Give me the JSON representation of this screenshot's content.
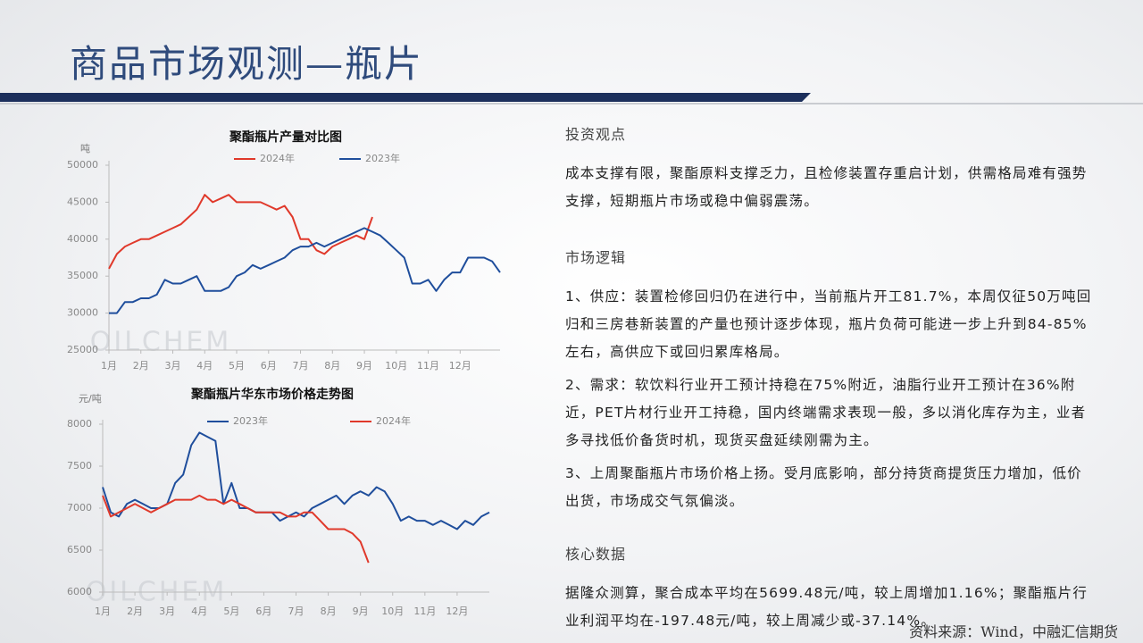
{
  "header": {
    "title": "商品市场观测—瓶片"
  },
  "chart_data": [
    {
      "type": "line",
      "title": "聚酯瓶片产量对比图",
      "y_label": "吨",
      "watermark": "OILCHEM",
      "x": [
        1,
        1.25,
        1.5,
        1.75,
        2,
        2.25,
        2.5,
        2.75,
        3,
        3.25,
        3.5,
        3.75,
        4,
        4.25,
        4.5,
        4.75,
        5,
        5.25,
        5.5,
        5.75,
        6,
        6.25,
        6.5,
        6.75,
        7,
        7.25,
        7.5,
        7.75,
        8,
        8.25,
        8.5,
        8.75,
        9,
        9.25,
        9.5,
        9.75,
        10,
        10.25,
        10.5,
        10.75,
        11,
        11.25,
        11.5,
        11.75,
        12,
        12.25,
        12.5,
        12.75,
        13,
        13.25
      ],
      "xlim": [
        1,
        13.25
      ],
      "xticks": [
        {
          "value": 1,
          "label": "1月"
        },
        {
          "value": 2,
          "label": "2月"
        },
        {
          "value": 3,
          "label": "3月"
        },
        {
          "value": 4,
          "label": "4月"
        },
        {
          "value": 5,
          "label": "5月"
        },
        {
          "value": 6,
          "label": "6月"
        },
        {
          "value": 7,
          "label": "7月"
        },
        {
          "value": 8,
          "label": "8月"
        },
        {
          "value": 9,
          "label": "9月"
        },
        {
          "value": 10,
          "label": "10月"
        },
        {
          "value": 11,
          "label": "11月"
        },
        {
          "value": 12,
          "label": "12月"
        }
      ],
      "ylim": [
        25000,
        50000
      ],
      "yticks": [
        25000,
        30000,
        35000,
        40000,
        45000,
        50000
      ],
      "series": [
        {
          "name": "2024年",
          "color": "#e0392b",
          "values": [
            36000,
            38000,
            39000,
            39500,
            40000,
            40000,
            40500,
            41000,
            41500,
            42000,
            43000,
            44000,
            46000,
            45000,
            45500,
            46000,
            45000,
            45000,
            45000,
            45000,
            44500,
            44000,
            44500,
            43000,
            40000,
            40000,
            38500,
            38000,
            39000,
            39500,
            40000,
            40500,
            40000,
            43000,
            null,
            null,
            null,
            null,
            null,
            null,
            null,
            null,
            null,
            null,
            null,
            null,
            null,
            null,
            null,
            null
          ]
        },
        {
          "name": "2023年",
          "color": "#1f4e9c",
          "values": [
            30000,
            30000,
            31500,
            31500,
            32000,
            32000,
            32500,
            34500,
            34000,
            34000,
            34500,
            35000,
            33000,
            33000,
            33000,
            33500,
            35000,
            35500,
            36500,
            36000,
            36500,
            37000,
            37500,
            38500,
            39000,
            39000,
            39500,
            39000,
            39500,
            40000,
            40500,
            41000,
            41500,
            41000,
            40500,
            39500,
            38500,
            37500,
            34000,
            34000,
            34500,
            33000,
            34500,
            35500,
            35500,
            37500,
            37500,
            37500,
            37000,
            35500
          ]
        }
      ]
    },
    {
      "type": "line",
      "title": "聚酯瓶片华东市场价格走势图",
      "y_label": "元/吨",
      "watermark": "OILCHEM",
      "x": [
        1,
        1.25,
        1.5,
        1.75,
        2,
        2.25,
        2.5,
        2.75,
        3,
        3.25,
        3.5,
        3.75,
        4,
        4.25,
        4.5,
        4.75,
        5,
        5.25,
        5.5,
        5.75,
        6,
        6.25,
        6.5,
        6.75,
        7,
        7.25,
        7.5,
        7.75,
        8,
        8.25,
        8.5,
        8.75,
        9,
        9.25,
        9.5,
        9.75,
        10,
        10.25,
        10.5,
        10.75,
        11,
        11.25,
        11.5,
        11.75,
        12,
        12.25,
        12.5,
        12.75,
        13
      ],
      "xlim": [
        1,
        13
      ],
      "xticks": [
        {
          "value": 1,
          "label": "1月"
        },
        {
          "value": 2,
          "label": "2月"
        },
        {
          "value": 3,
          "label": "3月"
        },
        {
          "value": 4,
          "label": "4月"
        },
        {
          "value": 5,
          "label": "5月"
        },
        {
          "value": 6,
          "label": "6月"
        },
        {
          "value": 7,
          "label": "7月"
        },
        {
          "value": 8,
          "label": "8月"
        },
        {
          "value": 9,
          "label": "9月"
        },
        {
          "value": 10,
          "label": "10月"
        },
        {
          "value": 11,
          "label": "11月"
        },
        {
          "value": 12,
          "label": "12月"
        }
      ],
      "ylim": [
        6000,
        8000
      ],
      "yticks": [
        6000,
        6500,
        7000,
        7500,
        8000
      ],
      "series": [
        {
          "name": "2023年",
          "color": "#1f4e9c",
          "values": [
            7250,
            6950,
            6900,
            7050,
            7100,
            7050,
            7000,
            7000,
            7050,
            7300,
            7400,
            7750,
            7900,
            7850,
            7800,
            7050,
            7300,
            7000,
            7000,
            6950,
            6950,
            6950,
            6850,
            6900,
            6950,
            6900,
            7000,
            7050,
            7100,
            7150,
            7050,
            7150,
            7200,
            7150,
            7250,
            7200,
            7050,
            6850,
            6900,
            6850,
            6850,
            6800,
            6850,
            6800,
            6750,
            6850,
            6800,
            6900,
            6950
          ]
        },
        {
          "name": "2024年",
          "color": "#e0392b",
          "values": [
            7150,
            6900,
            6950,
            7000,
            7050,
            7000,
            6950,
            7000,
            7050,
            7100,
            7100,
            7100,
            7150,
            7100,
            7100,
            7050,
            7100,
            7050,
            7000,
            6950,
            6950,
            6950,
            6950,
            6900,
            6900,
            6950,
            6950,
            6850,
            6750,
            6750,
            6750,
            6700,
            6600,
            6350,
            null,
            null,
            null,
            null,
            null,
            null,
            null,
            null,
            null,
            null,
            null,
            null,
            null,
            null,
            null
          ]
        }
      ]
    }
  ],
  "sections": [
    {
      "heading": "投资观点",
      "paragraphs": [
        "成本支撑有限，聚酯原料支撑乏力，且检修装置存重启计划，供需格局难有强势支撑，短期瓶片市场或稳中偏弱震荡。"
      ]
    },
    {
      "heading": "市场逻辑",
      "paragraphs": [
        "1、供应：装置检修回归仍在进行中，当前瓶片开工81.7%，本周仅征50万吨回归和三房巷新装置的产量也预计逐步体现，瓶片负荷可能进一步上升到84-85%左右，高供应下或回归累库格局。",
        "2、需求：软饮料行业开工预计持稳在75%附近，油脂行业开工预计在36%附近，PET片材行业开工持稳，国内终端需求表现一般，多以消化库存为主，业者多寻找低价备货时机，现货买盘延续刚需为主。",
        "3、上周聚酯瓶片市场价格上扬。受月底影响，部分持货商提货压力增加，低价出货，市场成交气氛偏淡。"
      ]
    },
    {
      "heading": "核心数据",
      "paragraphs": [
        "据隆众测算，聚合成本平均在5699.48元/吨，较上周增加1.16%；聚酯瓶片行业利润平均在-197.48元/吨，较上周减少或-37.14%。"
      ]
    }
  ],
  "source": "资料来源：Wind，中融汇信期货"
}
